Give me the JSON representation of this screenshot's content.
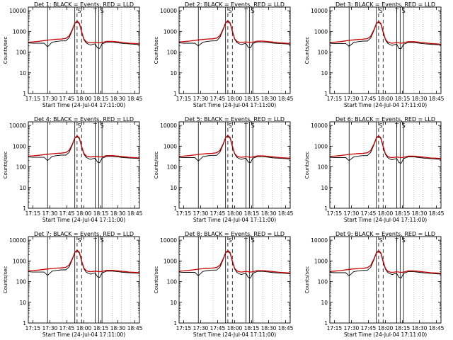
{
  "colors": {
    "events": "#000000",
    "lld": "#cc0000",
    "background": "#ffffff"
  },
  "shared_axes": {
    "xlabel": "Start Time (24-Jul-04 17:11:00)",
    "ylabel": "Counts/sec",
    "x_tick_labels": [
      "17:15",
      "17:30",
      "17:45",
      "18:00",
      "18:15",
      "18:30",
      "18:45"
    ],
    "y_tick_labels": [
      "1",
      "10",
      "100",
      "1000",
      "10000"
    ],
    "y_scale": "log",
    "ylim": [
      1,
      15000
    ]
  },
  "chart_data": [
    {
      "type": "line",
      "title": "Det 1: BLACK = Events, RED = LLD",
      "marker_labels": [
        "S",
        "T",
        "S"
      ],
      "x": [
        "17:11",
        "17:15",
        "17:20",
        "17:25",
        "17:28",
        "17:32",
        "17:36",
        "17:40",
        "17:44",
        "17:47",
        "17:50",
        "17:52",
        "17:54",
        "17:56",
        "17:58",
        "18:00",
        "18:02",
        "18:04",
        "18:06",
        "18:08",
        "18:10",
        "18:12",
        "18:14",
        "18:16",
        "18:20",
        "18:25",
        "18:30",
        "18:35",
        "18:40",
        "18:45",
        "18:49"
      ],
      "series": [
        {
          "name": "BLACK = Events",
          "values": [
            280,
            270,
            270,
            270,
            180,
            300,
            330,
            350,
            350,
            500,
            1200,
            2400,
            3000,
            2300,
            900,
            400,
            280,
            240,
            220,
            240,
            250,
            160,
            150,
            250,
            300,
            300,
            280,
            260,
            250,
            240,
            230
          ]
        },
        {
          "name": "RED = LLD",
          "values": [
            300,
            310,
            330,
            360,
            380,
            400,
            420,
            430,
            460,
            600,
            1300,
            2500,
            3200,
            2500,
            1000,
            430,
            320,
            290,
            280,
            290,
            300,
            290,
            280,
            290,
            330,
            330,
            310,
            290,
            270,
            260,
            250
          ]
        }
      ]
    },
    {
      "type": "line",
      "title": "Det 2: BLACK = Events, RED = LLD",
      "marker_labels": [
        "S",
        "T",
        "S"
      ],
      "x": [
        "17:11",
        "17:15",
        "17:20",
        "17:25",
        "17:28",
        "17:32",
        "17:36",
        "17:40",
        "17:44",
        "17:47",
        "17:50",
        "17:52",
        "17:54",
        "17:56",
        "17:58",
        "18:00",
        "18:02",
        "18:04",
        "18:06",
        "18:08",
        "18:10",
        "18:12",
        "18:14",
        "18:16",
        "18:20",
        "18:25",
        "18:30",
        "18:35",
        "18:40",
        "18:45",
        "18:49"
      ],
      "series": [
        {
          "name": "BLACK = Events",
          "values": [
            280,
            270,
            270,
            270,
            200,
            300,
            330,
            350,
            350,
            520,
            1250,
            2500,
            3100,
            2400,
            950,
            420,
            290,
            250,
            230,
            250,
            260,
            170,
            160,
            260,
            310,
            310,
            290,
            270,
            260,
            250,
            240
          ]
        },
        {
          "name": "RED = LLD",
          "values": [
            310,
            320,
            340,
            370,
            390,
            410,
            430,
            440,
            470,
            620,
            1350,
            2600,
            3300,
            2600,
            1050,
            440,
            330,
            300,
            290,
            300,
            310,
            300,
            290,
            300,
            340,
            340,
            320,
            300,
            280,
            270,
            260
          ]
        }
      ]
    },
    {
      "type": "line",
      "title": "Det 3: BLACK = Events, RED = LLD",
      "marker_labels": [
        "S",
        "T",
        "S"
      ],
      "x": [
        "17:11",
        "17:15",
        "17:20",
        "17:25",
        "17:28",
        "17:32",
        "17:36",
        "17:40",
        "17:44",
        "17:47",
        "17:50",
        "17:52",
        "17:54",
        "17:56",
        "17:58",
        "18:00",
        "18:02",
        "18:04",
        "18:06",
        "18:08",
        "18:10",
        "18:12",
        "18:14",
        "18:16",
        "18:20",
        "18:25",
        "18:30",
        "18:35",
        "18:40",
        "18:45",
        "18:49"
      ],
      "series": [
        {
          "name": "BLACK = Events",
          "values": [
            270,
            260,
            260,
            260,
            190,
            290,
            320,
            340,
            340,
            480,
            1150,
            2300,
            2900,
            2200,
            880,
            390,
            270,
            230,
            210,
            230,
            240,
            150,
            150,
            240,
            290,
            290,
            270,
            250,
            240,
            230,
            220
          ]
        },
        {
          "name": "RED = LLD",
          "values": [
            290,
            300,
            320,
            350,
            370,
            390,
            410,
            420,
            450,
            580,
            1250,
            2400,
            3100,
            2400,
            980,
            420,
            310,
            280,
            270,
            280,
            290,
            280,
            270,
            280,
            320,
            320,
            300,
            280,
            260,
            250,
            240
          ]
        }
      ]
    },
    {
      "type": "line",
      "title": "Det 4: BLACK = Events, RED = LLD",
      "marker_labels": [
        "S",
        "T",
        "S"
      ],
      "x": [
        "17:11",
        "17:15",
        "17:20",
        "17:25",
        "17:28",
        "17:32",
        "17:36",
        "17:40",
        "17:44",
        "17:47",
        "17:50",
        "17:52",
        "17:54",
        "17:56",
        "17:58",
        "18:00",
        "18:02",
        "18:04",
        "18:06",
        "18:08",
        "18:10",
        "18:12",
        "18:14",
        "18:16",
        "18:20",
        "18:25",
        "18:30",
        "18:35",
        "18:40",
        "18:45",
        "18:49"
      ],
      "series": [
        {
          "name": "BLACK = Events",
          "values": [
            300,
            290,
            290,
            290,
            200,
            320,
            350,
            370,
            370,
            500,
            1200,
            2400,
            3000,
            2300,
            900,
            410,
            290,
            250,
            230,
            250,
            260,
            170,
            160,
            260,
            320,
            320,
            300,
            280,
            270,
            260,
            250
          ]
        },
        {
          "name": "RED = LLD",
          "values": [
            330,
            340,
            360,
            390,
            410,
            430,
            450,
            460,
            490,
            630,
            1300,
            2500,
            3200,
            2500,
            1000,
            450,
            340,
            310,
            300,
            310,
            320,
            310,
            300,
            310,
            350,
            350,
            330,
            310,
            290,
            280,
            270
          ]
        }
      ]
    },
    {
      "type": "line",
      "title": "Det 5: BLACK = Events, RED = LLD",
      "marker_labels": [
        "S",
        "T",
        "S"
      ],
      "x": [
        "17:11",
        "17:15",
        "17:20",
        "17:25",
        "17:28",
        "17:32",
        "17:36",
        "17:40",
        "17:44",
        "17:47",
        "17:50",
        "17:52",
        "17:54",
        "17:56",
        "17:58",
        "18:00",
        "18:02",
        "18:04",
        "18:06",
        "18:08",
        "18:10",
        "18:12",
        "18:14",
        "18:16",
        "18:20",
        "18:25",
        "18:30",
        "18:35",
        "18:40",
        "18:45",
        "18:49"
      ],
      "series": [
        {
          "name": "BLACK = Events",
          "values": [
            290,
            280,
            280,
            280,
            190,
            310,
            340,
            360,
            360,
            510,
            1250,
            2500,
            3100,
            2400,
            920,
            420,
            290,
            250,
            230,
            250,
            260,
            170,
            160,
            260,
            310,
            310,
            290,
            270,
            260,
            250,
            240
          ]
        },
        {
          "name": "RED = LLD",
          "values": [
            320,
            330,
            350,
            380,
            400,
            420,
            440,
            450,
            480,
            620,
            1350,
            2600,
            3300,
            2600,
            1020,
            440,
            330,
            300,
            290,
            300,
            310,
            300,
            290,
            300,
            340,
            340,
            320,
            300,
            280,
            270,
            260
          ]
        }
      ]
    },
    {
      "type": "line",
      "title": "Det 6: BLACK = Events, RED = LLD",
      "marker_labels": [
        "S",
        "T",
        "S"
      ],
      "x": [
        "17:11",
        "17:15",
        "17:20",
        "17:25",
        "17:28",
        "17:32",
        "17:36",
        "17:40",
        "17:44",
        "17:47",
        "17:50",
        "17:52",
        "17:54",
        "17:56",
        "17:58",
        "18:00",
        "18:02",
        "18:04",
        "18:06",
        "18:08",
        "18:10",
        "18:12",
        "18:14",
        "18:16",
        "18:20",
        "18:25",
        "18:30",
        "18:35",
        "18:40",
        "18:45",
        "18:49"
      ],
      "series": [
        {
          "name": "BLACK = Events",
          "values": [
            290,
            280,
            280,
            280,
            200,
            300,
            330,
            350,
            350,
            500,
            1200,
            2400,
            3000,
            2300,
            900,
            400,
            280,
            240,
            220,
            240,
            250,
            160,
            150,
            250,
            300,
            300,
            280,
            260,
            250,
            240,
            230
          ]
        },
        {
          "name": "RED = LLD",
          "values": [
            320,
            330,
            350,
            380,
            400,
            420,
            440,
            450,
            480,
            610,
            1300,
            2500,
            3200,
            2500,
            1000,
            430,
            320,
            290,
            280,
            290,
            300,
            290,
            280,
            290,
            330,
            330,
            310,
            290,
            270,
            260,
            250
          ]
        }
      ]
    },
    {
      "type": "line",
      "title": "Det 7: BLACK = Events, RED = LLD",
      "marker_labels": [
        "S",
        "T",
        "S"
      ],
      "x": [
        "17:11",
        "17:15",
        "17:20",
        "17:25",
        "17:28",
        "17:32",
        "17:36",
        "17:40",
        "17:44",
        "17:47",
        "17:50",
        "17:52",
        "17:54",
        "17:56",
        "17:58",
        "18:00",
        "18:02",
        "18:04",
        "18:06",
        "18:08",
        "18:10",
        "18:12",
        "18:14",
        "18:16",
        "18:20",
        "18:25",
        "18:30",
        "18:35",
        "18:40",
        "18:45",
        "18:49"
      ],
      "series": [
        {
          "name": "BLACK = Events",
          "values": [
            300,
            290,
            290,
            290,
            200,
            320,
            350,
            370,
            370,
            520,
            1250,
            2500,
            3100,
            2400,
            920,
            420,
            290,
            250,
            230,
            250,
            260,
            170,
            160,
            260,
            320,
            320,
            300,
            280,
            270,
            260,
            250
          ]
        },
        {
          "name": "RED = LLD",
          "values": [
            330,
            340,
            360,
            390,
            410,
            430,
            450,
            460,
            490,
            630,
            1350,
            2600,
            3300,
            2600,
            1020,
            450,
            340,
            310,
            300,
            310,
            320,
            310,
            300,
            310,
            350,
            350,
            330,
            310,
            290,
            280,
            270
          ]
        }
      ]
    },
    {
      "type": "line",
      "title": "Det 8: BLACK = Events, RED = LLD",
      "marker_labels": [
        "S",
        "T",
        "S"
      ],
      "x": [
        "17:11",
        "17:15",
        "17:20",
        "17:25",
        "17:28",
        "17:32",
        "17:36",
        "17:40",
        "17:44",
        "17:47",
        "17:50",
        "17:52",
        "17:54",
        "17:56",
        "17:58",
        "18:00",
        "18:02",
        "18:04",
        "18:06",
        "18:08",
        "18:10",
        "18:12",
        "18:14",
        "18:16",
        "18:20",
        "18:25",
        "18:30",
        "18:35",
        "18:40",
        "18:45",
        "18:49"
      ],
      "series": [
        {
          "name": "BLACK = Events",
          "values": [
            290,
            280,
            280,
            280,
            190,
            310,
            340,
            360,
            360,
            500,
            1200,
            2400,
            3000,
            2300,
            900,
            410,
            280,
            240,
            220,
            240,
            250,
            160,
            150,
            250,
            310,
            310,
            290,
            270,
            260,
            250,
            240
          ]
        },
        {
          "name": "RED = LLD",
          "values": [
            320,
            330,
            350,
            380,
            400,
            420,
            440,
            450,
            480,
            620,
            1300,
            2500,
            3200,
            2500,
            1000,
            440,
            330,
            300,
            290,
            300,
            310,
            300,
            290,
            300,
            340,
            340,
            320,
            300,
            280,
            270,
            260
          ]
        }
      ]
    },
    {
      "type": "line",
      "title": "Det 9: BLACK = Events, RED = LLD",
      "marker_labels": [
        "S",
        "T",
        "S"
      ],
      "x": [
        "17:11",
        "17:15",
        "17:20",
        "17:25",
        "17:28",
        "17:32",
        "17:36",
        "17:40",
        "17:44",
        "17:47",
        "17:50",
        "17:52",
        "17:54",
        "17:56",
        "17:58",
        "18:00",
        "18:02",
        "18:04",
        "18:06",
        "18:08",
        "18:10",
        "18:12",
        "18:14",
        "18:16",
        "18:20",
        "18:25",
        "18:30",
        "18:35",
        "18:40",
        "18:45",
        "18:49"
      ],
      "series": [
        {
          "name": "BLACK = Events",
          "values": [
            280,
            270,
            270,
            270,
            190,
            300,
            330,
            350,
            350,
            490,
            1180,
            2350,
            2950,
            2250,
            880,
            400,
            280,
            240,
            220,
            240,
            250,
            160,
            150,
            250,
            300,
            300,
            280,
            260,
            250,
            240,
            230
          ]
        },
        {
          "name": "RED = LLD",
          "values": [
            310,
            320,
            340,
            370,
            390,
            410,
            430,
            440,
            470,
            600,
            1280,
            2450,
            3150,
            2450,
            980,
            430,
            320,
            290,
            280,
            290,
            300,
            290,
            280,
            290,
            330,
            330,
            310,
            290,
            270,
            260,
            250
          ]
        }
      ]
    }
  ]
}
